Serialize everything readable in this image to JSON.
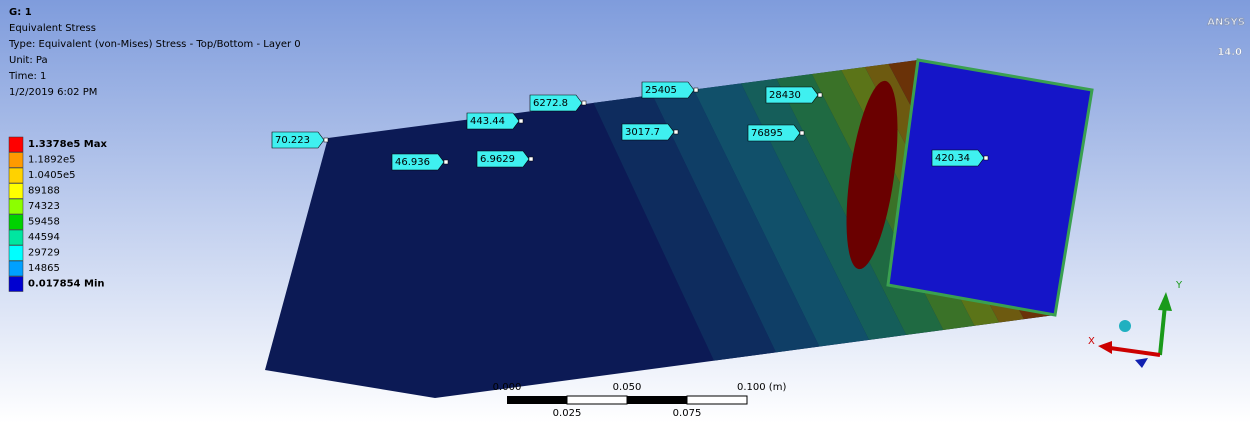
{
  "header": {
    "id": "G: 1",
    "name": "Equivalent Stress",
    "type": "Type: Equivalent (von-Mises) Stress - Top/Bottom - Layer 0",
    "unit": "Unit: Pa",
    "time": "Time: 1",
    "date": "1/2/2019 6:02 PM"
  },
  "legend": {
    "labels": [
      "1.3378e5 Max",
      "1.1892e5",
      "1.0405e5",
      "89188",
      "74323",
      "59458",
      "44594",
      "29729",
      "14865",
      "0.017854 Min"
    ]
  },
  "probes": [
    "70.223",
    "443.44",
    "6272.8",
    "25405",
    "28430",
    "46.936",
    "6.9629",
    "3017.7",
    "76895",
    "420.34"
  ],
  "logo": {
    "brand": "ANSYS",
    "version": "14.0"
  },
  "scale_bar": {
    "top": [
      "0.000",
      "0.050",
      "0.100 (m)"
    ],
    "bottom": [
      "0.025",
      "0.075"
    ]
  },
  "triad": {
    "x": "X",
    "y": "Y"
  }
}
